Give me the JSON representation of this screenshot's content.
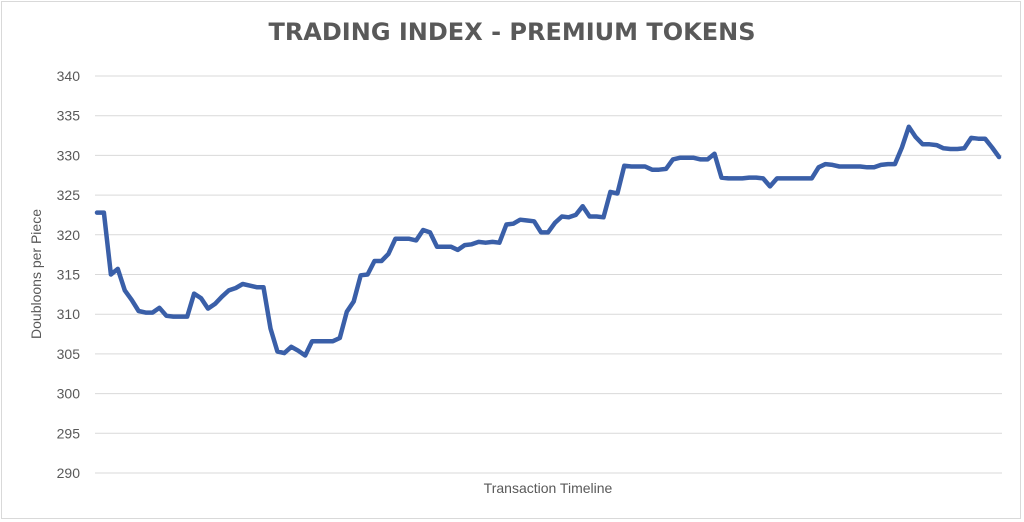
{
  "chart_data": {
    "type": "line",
    "title": "TRADING INDEX - PREMIUM TOKENS",
    "xlabel": "Transaction Timeline",
    "ylabel": "Doubloons per Piece",
    "ylim": [
      290,
      340
    ],
    "ytick_step": 5,
    "grid": true,
    "legend": "none",
    "line_color": "#3a5fa8",
    "series": [
      {
        "values": [
          322.8,
          322.8,
          315.0,
          315.7,
          313.0,
          311.8,
          310.4,
          310.2,
          310.2,
          310.8,
          309.8,
          309.7,
          309.7,
          309.7,
          312.6,
          312.0,
          310.7,
          311.3,
          312.2,
          313.0,
          313.3,
          313.8,
          313.6,
          313.4,
          313.4,
          308.2,
          305.3,
          305.1,
          305.9,
          305.4,
          304.8,
          306.6,
          306.6,
          306.6,
          306.6,
          307.0,
          310.3,
          311.6,
          314.9,
          315.0,
          316.7,
          316.7,
          317.6,
          319.5,
          319.5,
          319.5,
          319.3,
          320.6,
          320.3,
          318.5,
          318.5,
          318.5,
          318.1,
          318.7,
          318.8,
          319.1,
          319.0,
          319.1,
          319.0,
          321.3,
          321.4,
          321.9,
          321.8,
          321.7,
          320.3,
          320.3,
          321.5,
          322.3,
          322.2,
          322.5,
          323.6,
          322.3,
          322.3,
          322.2,
          325.4,
          325.2,
          328.7,
          328.6,
          328.6,
          328.6,
          328.2,
          328.2,
          328.3,
          329.5,
          329.7,
          329.7,
          329.7,
          329.5,
          329.5,
          330.2,
          327.2,
          327.1,
          327.1,
          327.1,
          327.2,
          327.2,
          327.1,
          326.1,
          327.1,
          327.1,
          327.1,
          327.1,
          327.1,
          327.1,
          328.5,
          328.9,
          328.8,
          328.6,
          328.6,
          328.6,
          328.6,
          328.5,
          328.5,
          328.8,
          328.9,
          328.9,
          331.0,
          333.6,
          332.3,
          331.4,
          331.4,
          331.3,
          330.9,
          330.8,
          330.8,
          330.9,
          332.2,
          332.1,
          332.1,
          331.0,
          329.8
        ]
      }
    ]
  }
}
